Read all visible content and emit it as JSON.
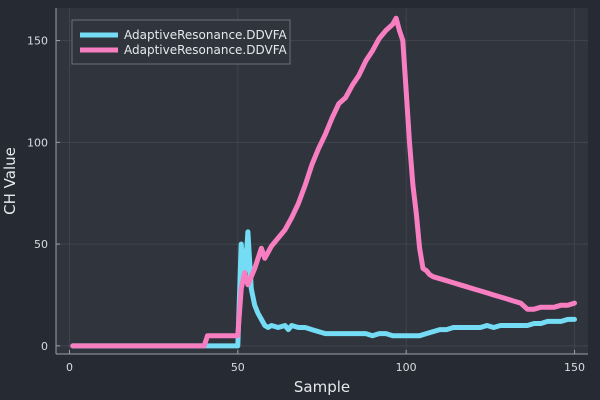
{
  "chart_data": {
    "type": "line",
    "title": "",
    "xlabel": "Sample",
    "ylabel": "CH Value",
    "xlim": [
      -4,
      154
    ],
    "ylim": [
      -4,
      166
    ],
    "xticks": [
      0,
      50,
      100,
      150
    ],
    "yticks": [
      0,
      50,
      100,
      150
    ],
    "grid": true,
    "legend_position": "top-left",
    "colors": {
      "background": "#262a32",
      "plot_background": "#30343c",
      "grid": "#41454d",
      "axis": "#9aa0aa"
    },
    "series": [
      {
        "name": "AdaptiveResonance.DDVFA",
        "color": "#74dcf4",
        "x": [
          1,
          10,
          20,
          30,
          40,
          45,
          49,
          50,
          51,
          52,
          53,
          54,
          55,
          56,
          57,
          58,
          59,
          60,
          62,
          64,
          65,
          66,
          68,
          70,
          72,
          74,
          76,
          78,
          80,
          82,
          84,
          86,
          88,
          90,
          92,
          94,
          96,
          98,
          100,
          102,
          104,
          106,
          108,
          110,
          112,
          114,
          116,
          118,
          120,
          122,
          124,
          126,
          128,
          130,
          132,
          134,
          136,
          138,
          140,
          142,
          144,
          146,
          148,
          150
        ],
        "y": [
          0,
          0,
          0,
          0,
          0,
          0,
          0,
          0,
          50,
          32,
          56,
          28,
          20,
          16,
          13,
          10,
          9,
          10,
          9,
          10,
          8,
          10,
          9,
          9,
          8,
          7,
          6,
          6,
          6,
          6,
          6,
          6,
          6,
          5,
          6,
          6,
          5,
          5,
          5,
          5,
          5,
          6,
          7,
          8,
          8,
          9,
          9,
          9,
          9,
          9,
          10,
          9,
          10,
          10,
          10,
          10,
          10,
          11,
          11,
          12,
          12,
          12,
          13,
          13
        ]
      },
      {
        "name": "AdaptiveResonance.DDVFA",
        "color": "#f77fc1",
        "x": [
          1,
          10,
          20,
          30,
          40,
          41,
          42,
          45,
          48,
          50,
          51,
          52,
          53,
          55,
          57,
          58,
          60,
          62,
          64,
          66,
          68,
          70,
          72,
          74,
          76,
          78,
          80,
          82,
          84,
          86,
          88,
          90,
          92,
          94,
          96,
          97,
          98,
          99,
          100,
          101,
          102,
          103,
          104,
          105,
          106,
          107,
          108,
          110,
          112,
          114,
          116,
          118,
          120,
          122,
          124,
          126,
          128,
          130,
          132,
          134,
          136,
          138,
          140,
          142,
          144,
          146,
          148,
          150
        ],
        "y": [
          0,
          0,
          0,
          0,
          0,
          5,
          5,
          5,
          5,
          5,
          28,
          36,
          30,
          38,
          48,
          43,
          49,
          53,
          57,
          63,
          70,
          79,
          89,
          97,
          104,
          112,
          119,
          122,
          128,
          133,
          140,
          145,
          151,
          155,
          158,
          161,
          155,
          150,
          125,
          100,
          79,
          65,
          48,
          38,
          37,
          35,
          34,
          33,
          32,
          31,
          30,
          29,
          28,
          27,
          26,
          25,
          24,
          23,
          22,
          21,
          18,
          18,
          19,
          19,
          19,
          20,
          20,
          21
        ]
      }
    ]
  }
}
